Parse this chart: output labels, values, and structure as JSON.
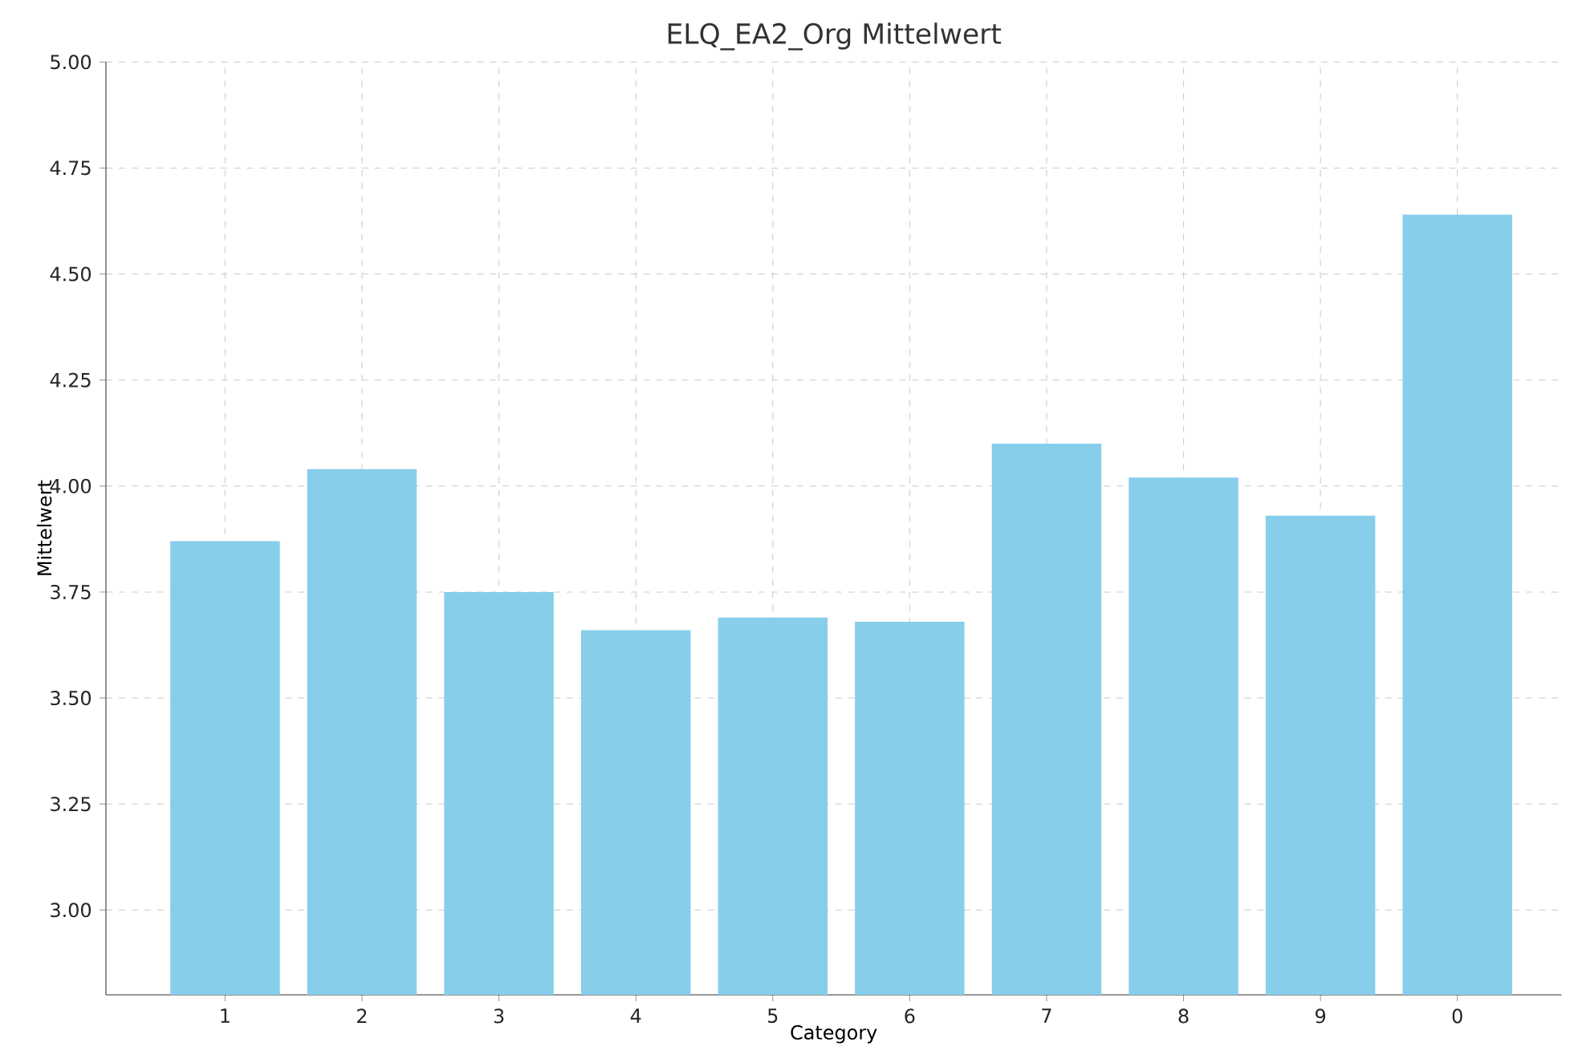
{
  "chart_data": {
    "type": "bar",
    "title": "ELQ_EA2_Org Mittelwert",
    "xlabel": "Category",
    "ylabel": "Mittelwert",
    "categories": [
      "1",
      "2",
      "3",
      "4",
      "5",
      "6",
      "7",
      "8",
      "9",
      "0"
    ],
    "values": [
      3.87,
      4.04,
      3.75,
      3.66,
      3.69,
      3.68,
      4.1,
      4.02,
      3.93,
      4.64
    ],
    "color": "#87ceeb",
    "ylim": [
      2.8,
      5.0
    ],
    "yticks": [
      {
        "value": 3.0,
        "label": "3.00"
      },
      {
        "value": 3.25,
        "label": "3.25"
      },
      {
        "value": 3.5,
        "label": "3.50"
      },
      {
        "value": 3.75,
        "label": "3.75"
      },
      {
        "value": 4.0,
        "label": "4.00"
      },
      {
        "value": 4.25,
        "label": "4.25"
      },
      {
        "value": 4.5,
        "label": "4.50"
      },
      {
        "value": 4.75,
        "label": "4.75"
      },
      {
        "value": 5.0,
        "label": "5.00"
      }
    ],
    "grid": true
  }
}
